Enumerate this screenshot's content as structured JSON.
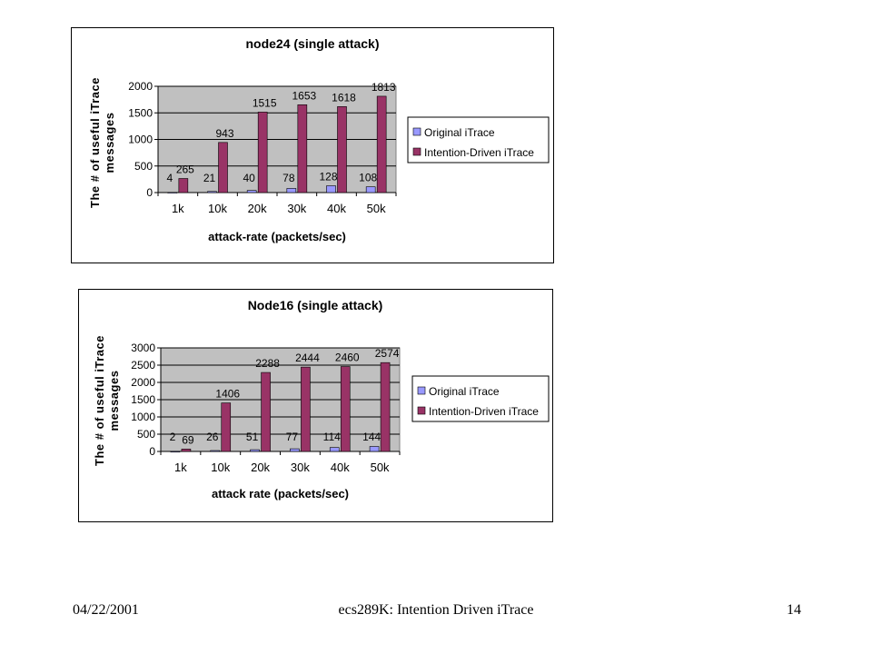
{
  "chart_data": [
    {
      "type": "bar",
      "title": "node24 (single attack)",
      "xlabel": "attack-rate (packets/sec)",
      "ylabel_lines": [
        "The # of useful iTrace",
        "messages"
      ],
      "categories": [
        "1k",
        "10k",
        "20k",
        "30k",
        "40k",
        "50k"
      ],
      "ylim": [
        0,
        2000
      ],
      "yticks": [
        "0",
        "500",
        "1000",
        "1500",
        "2000"
      ],
      "series": [
        {
          "name": "Original iTrace",
          "values": [
            4,
            21,
            40,
            78,
            128,
            108
          ],
          "labels": [
            "4",
            "21",
            "40",
            "78",
            "128",
            "108"
          ],
          "color": "#9999ff"
        },
        {
          "name": "Intention-Driven iTrace",
          "values": [
            265,
            943,
            1515,
            1653,
            1618,
            1813
          ],
          "labels": [
            "265",
            "943",
            "1515",
            "1653",
            "1618",
            "1813"
          ],
          "color": "#993366"
        }
      ],
      "grid": true,
      "plot_background": "#c0c0c0",
      "legend_position": "right"
    },
    {
      "type": "bar",
      "title": "Node16 (single attack)",
      "xlabel": "attack rate (packets/sec)",
      "ylabel_lines": [
        "The # of useful iTrace",
        "messages"
      ],
      "categories": [
        "1k",
        "10k",
        "20k",
        "30k",
        "40k",
        "50k"
      ],
      "ylim": [
        0,
        3000
      ],
      "yticks": [
        "0",
        "500",
        "1000",
        "1500",
        "2000",
        "2500",
        "3000"
      ],
      "series": [
        {
          "name": "Original iTrace",
          "values": [
            2,
            26,
            51,
            77,
            114,
            144
          ],
          "labels": [
            "2",
            "26",
            "51",
            "77",
            "114",
            "144"
          ],
          "color": "#9999ff"
        },
        {
          "name": "Intention-Driven iTrace",
          "values": [
            69,
            1406,
            2288,
            2444,
            2460,
            2574
          ],
          "labels": [
            "69",
            "1406",
            "2288",
            "2444",
            "2460",
            "2574"
          ],
          "color": "#993366"
        }
      ],
      "grid": true,
      "plot_background": "#c0c0c0",
      "legend_position": "right"
    }
  ],
  "footer": {
    "date": "04/22/2001",
    "title": "ecs289K: Intention Driven iTrace",
    "page": "14"
  }
}
